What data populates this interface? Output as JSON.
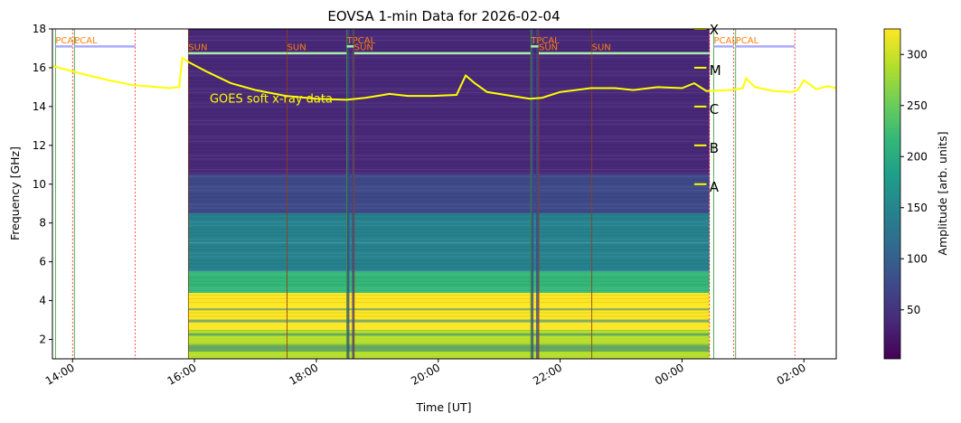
{
  "chart_data": {
    "type": "heatmap",
    "title": "EOVSA 1-min Data for 2026-02-04",
    "xlabel": "Time [UT]",
    "ylabel": "Frequency [GHz]",
    "x_range_hours": [
      13.67,
      26.53
    ],
    "ylim": [
      1,
      18
    ],
    "xticks": [
      {
        "h": 14,
        "label": "14:00"
      },
      {
        "h": 16,
        "label": "16:00"
      },
      {
        "h": 18,
        "label": "18:00"
      },
      {
        "h": 20,
        "label": "20:00"
      },
      {
        "h": 22,
        "label": "22:00"
      },
      {
        "h": 24,
        "label": "00:00"
      },
      {
        "h": 26,
        "label": "02:00"
      }
    ],
    "yticks": [
      2,
      4,
      6,
      8,
      10,
      12,
      14,
      16,
      18
    ],
    "data_window_hours": [
      15.9,
      24.45
    ],
    "colorbar": {
      "label": "Amplitude [arb. units]",
      "range": [
        2,
        325
      ],
      "ticks": [
        50,
        100,
        150,
        200,
        250,
        300
      ],
      "colormap": [
        "#440154",
        "#482878",
        "#3e4989",
        "#31688e",
        "#26828e",
        "#1f9e89",
        "#35b779",
        "#6ece58",
        "#b5de2b",
        "#fde725"
      ]
    },
    "scans": [
      {
        "name": "PCAL",
        "start": 13.72,
        "end": 14.0
      },
      {
        "name": "PCAL",
        "start": 14.03,
        "end": 15.03
      },
      {
        "name": "SUN",
        "start": 15.9,
        "end": 17.52
      },
      {
        "name": "SUN",
        "start": 17.52,
        "end": 18.5
      },
      {
        "name": "TPCAL",
        "start": 18.5,
        "end": 18.62
      },
      {
        "name": "SUN",
        "start": 18.62,
        "end": 21.52
      },
      {
        "name": "TPCAL",
        "start": 21.52,
        "end": 21.65
      },
      {
        "name": "SUN",
        "start": 21.65,
        "end": 22.52
      },
      {
        "name": "SUN",
        "start": 22.52,
        "end": 24.45
      },
      {
        "name": "PCAL",
        "start": 24.52,
        "end": 24.85
      },
      {
        "name": "PCAL",
        "start": 24.88,
        "end": 25.85
      }
    ],
    "goes": {
      "label": "GOES soft x-ray data",
      "classes": [
        "X",
        "M",
        "C",
        "B",
        "A"
      ],
      "class_freq": [
        18,
        16,
        14,
        12,
        10
      ],
      "curve": [
        [
          13.67,
          16.1
        ],
        [
          13.9,
          15.9
        ],
        [
          14.2,
          15.65
        ],
        [
          14.6,
          15.35
        ],
        [
          15.0,
          15.1
        ],
        [
          15.4,
          15.0
        ],
        [
          15.6,
          14.95
        ],
        [
          15.75,
          15.0
        ],
        [
          15.8,
          16.5
        ],
        [
          15.9,
          16.3
        ],
        [
          16.2,
          15.8
        ],
        [
          16.6,
          15.2
        ],
        [
          17.0,
          14.85
        ],
        [
          17.5,
          14.55
        ],
        [
          18.0,
          14.4
        ],
        [
          18.5,
          14.35
        ],
        [
          18.8,
          14.45
        ],
        [
          19.0,
          14.55
        ],
        [
          19.2,
          14.65
        ],
        [
          19.5,
          14.55
        ],
        [
          19.9,
          14.55
        ],
        [
          20.3,
          14.6
        ],
        [
          20.45,
          15.6
        ],
        [
          20.6,
          15.2
        ],
        [
          20.8,
          14.75
        ],
        [
          21.1,
          14.6
        ],
        [
          21.5,
          14.4
        ],
        [
          21.7,
          14.45
        ],
        [
          22.0,
          14.75
        ],
        [
          22.5,
          14.95
        ],
        [
          22.9,
          14.95
        ],
        [
          23.2,
          14.85
        ],
        [
          23.6,
          15.0
        ],
        [
          24.0,
          14.95
        ],
        [
          24.2,
          15.2
        ],
        [
          24.4,
          14.8
        ],
        [
          24.8,
          14.85
        ],
        [
          25.0,
          14.95
        ],
        [
          25.05,
          15.45
        ],
        [
          25.2,
          15.0
        ],
        [
          25.5,
          14.8
        ],
        [
          25.8,
          14.75
        ],
        [
          25.9,
          14.85
        ],
        [
          26.0,
          15.35
        ],
        [
          26.2,
          14.9
        ],
        [
          26.4,
          15.05
        ],
        [
          26.53,
          14.95
        ]
      ]
    },
    "band_amplitudes": [
      {
        "f0": 1.0,
        "f1": 2.5,
        "amp": 300
      },
      {
        "f0": 2.5,
        "f1": 4.4,
        "amp": 310
      },
      {
        "f0": 4.4,
        "f1": 5.5,
        "amp": 205
      },
      {
        "f0": 5.5,
        "f1": 7.0,
        "amp": 160
      },
      {
        "f0": 7.0,
        "f1": 8.5,
        "amp": 130
      },
      {
        "f0": 8.5,
        "f1": 10.5,
        "amp": 80
      },
      {
        "f0": 10.5,
        "f1": 12.5,
        "amp": 45
      },
      {
        "f0": 12.5,
        "f1": 18.0,
        "amp": 20
      }
    ]
  }
}
